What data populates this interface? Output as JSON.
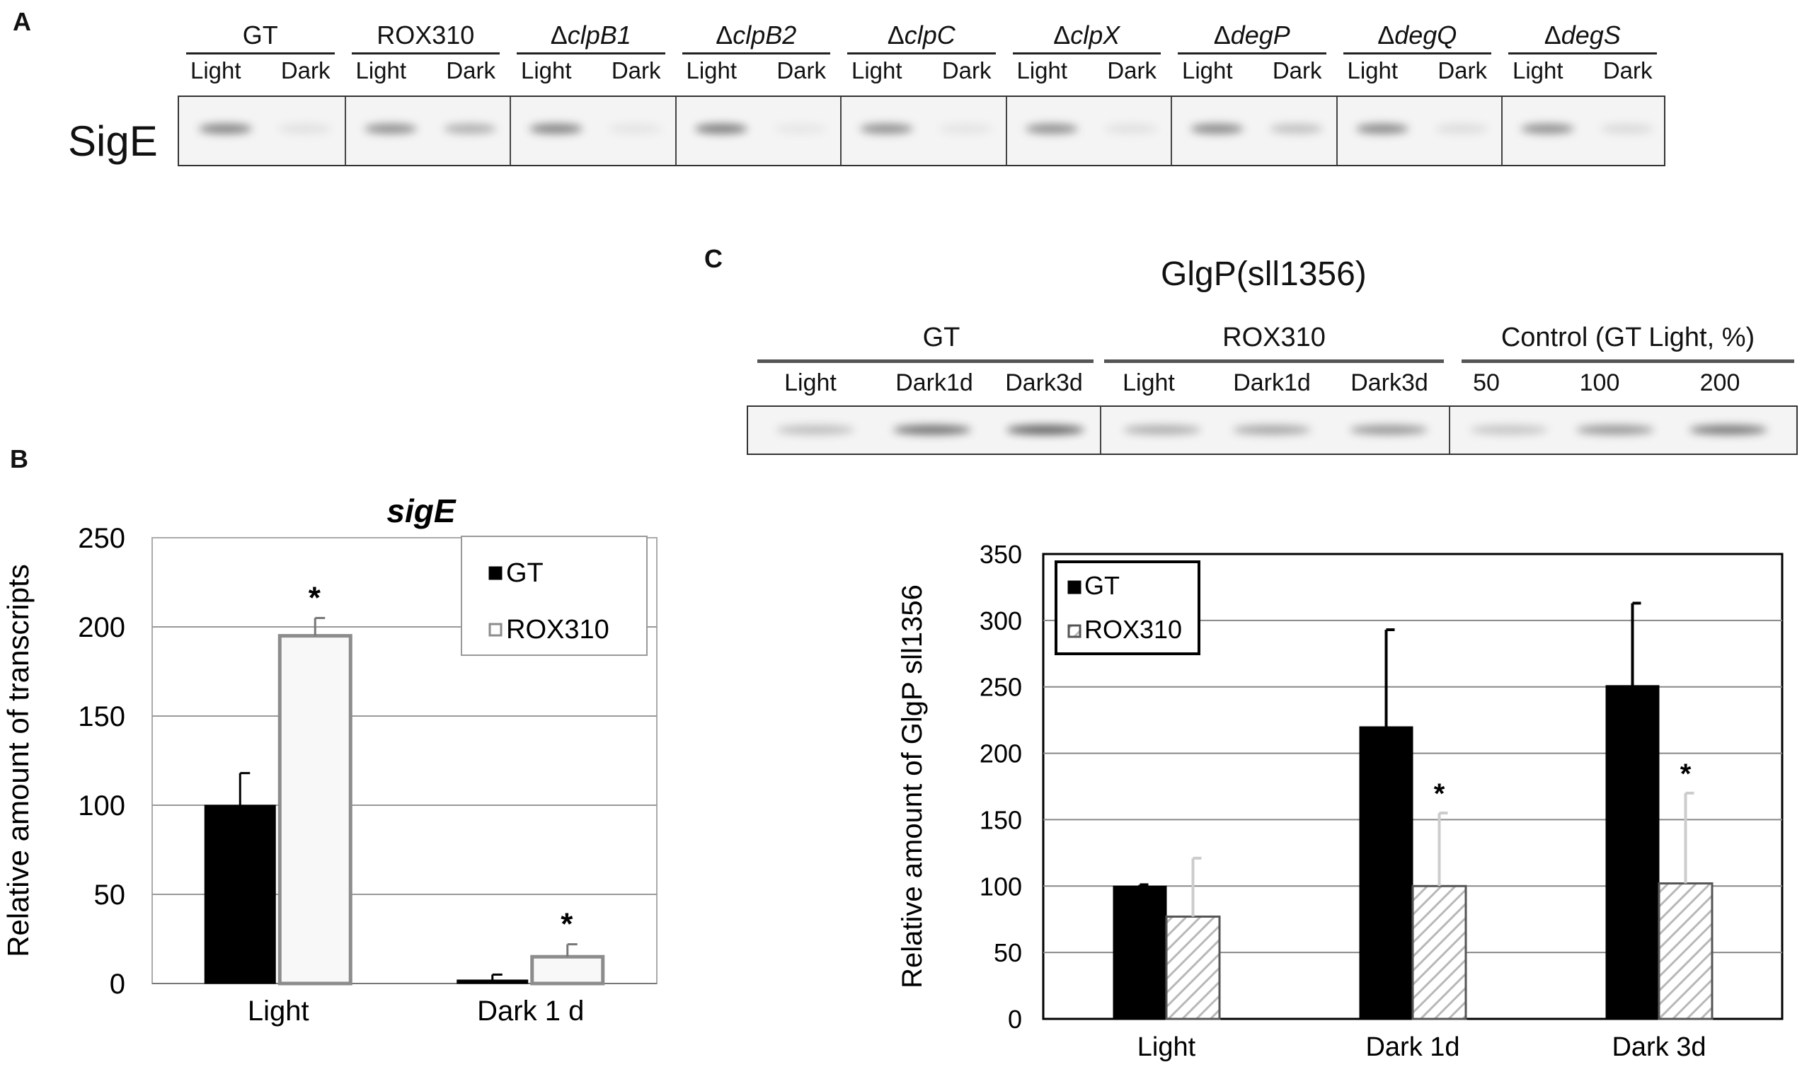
{
  "panel_letters": {
    "a": "A",
    "b": "B",
    "c": "C"
  },
  "panel_a": {
    "row_label": "SigE",
    "strains": [
      {
        "prefix": "",
        "name": "GT"
      },
      {
        "prefix": "",
        "name": "ROX310"
      },
      {
        "prefix": "Δ",
        "name": "clpB1"
      },
      {
        "prefix": "Δ",
        "name": "clpB2"
      },
      {
        "prefix": "Δ",
        "name": "clpC"
      },
      {
        "prefix": "Δ",
        "name": "clpX"
      },
      {
        "prefix": "Δ",
        "name": "degP"
      },
      {
        "prefix": "Δ",
        "name": "degQ"
      },
      {
        "prefix": "Δ",
        "name": "degS"
      }
    ],
    "lane_labels": [
      "Light",
      "Dark"
    ]
  },
  "panel_c_blot": {
    "title": "GlgP(sll1356)",
    "groups": [
      {
        "name": "GT",
        "lanes": [
          "Light",
          "Dark1d",
          "Dark3d"
        ]
      },
      {
        "name": "ROX310",
        "lanes": [
          "Light",
          "Dark1d",
          "Dark3d"
        ]
      },
      {
        "name": "Control (GT Light, %)",
        "lanes": [
          "50",
          "100",
          "200"
        ]
      }
    ]
  },
  "chart_data": [
    {
      "type": "bar",
      "title": "sigE",
      "xlabel": "",
      "ylabel": "Relative amount of transcripts",
      "categories": [
        "Light",
        "Dark 1 d"
      ],
      "ylim": [
        0,
        250
      ],
      "yticks": [
        "0",
        "50",
        "100",
        "150",
        "200",
        "250"
      ],
      "grid": true,
      "legend": "top-right",
      "series": [
        {
          "name": "GT",
          "values": [
            100,
            2
          ],
          "errors": [
            18,
            3
          ],
          "fill": "#000000",
          "stroke": "#000000"
        },
        {
          "name": "ROX310",
          "values": [
            195,
            15
          ],
          "errors": [
            10,
            7
          ],
          "fill": "#f8f8f8",
          "stroke": "#8c8c8c"
        }
      ],
      "annotations": [
        {
          "series": "ROX310",
          "category": "Light",
          "text": "*"
        },
        {
          "series": "ROX310",
          "category": "Dark 1 d",
          "text": "*"
        }
      ]
    },
    {
      "type": "bar",
      "title": "",
      "xlabel": "",
      "ylabel": "Relative amount of GlgP sll1356",
      "categories": [
        "Light",
        "Dark 1d",
        "Dark 3d"
      ],
      "ylim": [
        0,
        350
      ],
      "yticks": [
        "0",
        "50",
        "100",
        "150",
        "200",
        "250",
        "300",
        "350"
      ],
      "grid": true,
      "legend": "top-left",
      "series": [
        {
          "name": "GT",
          "values": [
            100,
            220,
            251
          ],
          "errors": [
            1,
            73,
            62
          ],
          "fill": "#000000",
          "stroke": "#000000"
        },
        {
          "name": "ROX310",
          "values": [
            77,
            100,
            102
          ],
          "errors": [
            44,
            55,
            68
          ],
          "fill": "hatched",
          "stroke": "#555555"
        }
      ],
      "annotations": [
        {
          "series": "ROX310",
          "category": "Dark 1d",
          "text": "*"
        },
        {
          "series": "ROX310",
          "category": "Dark 3d",
          "text": "*"
        }
      ]
    }
  ]
}
